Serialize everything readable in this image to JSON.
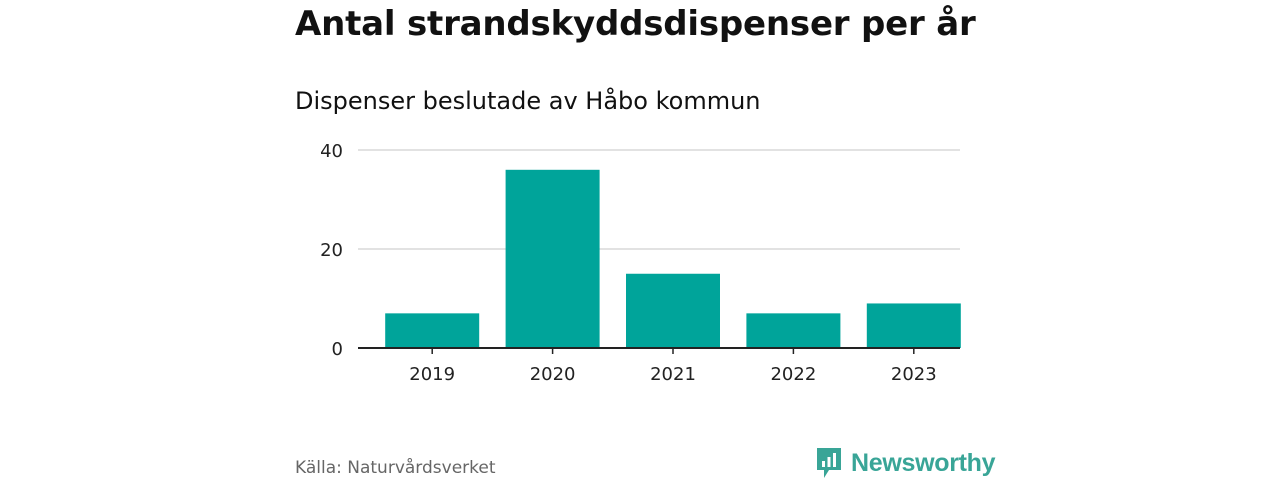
{
  "chart_data": {
    "type": "bar",
    "title": "Antal strandskyddsdispenser per år",
    "subtitle": "Dispenser beslutade av Håbo kommun",
    "categories": [
      "2019",
      "2020",
      "2021",
      "2022",
      "2023"
    ],
    "values": [
      7,
      36,
      15,
      7,
      9
    ],
    "ylim": [
      0,
      40
    ],
    "yticks": [
      "0",
      "20",
      "40"
    ],
    "grid": true,
    "bar_color": "#00a49a"
  },
  "footer": {
    "source": "Källa: Naturvårdsverket",
    "brand": "Newsworthy",
    "brand_color": "#39a597"
  }
}
